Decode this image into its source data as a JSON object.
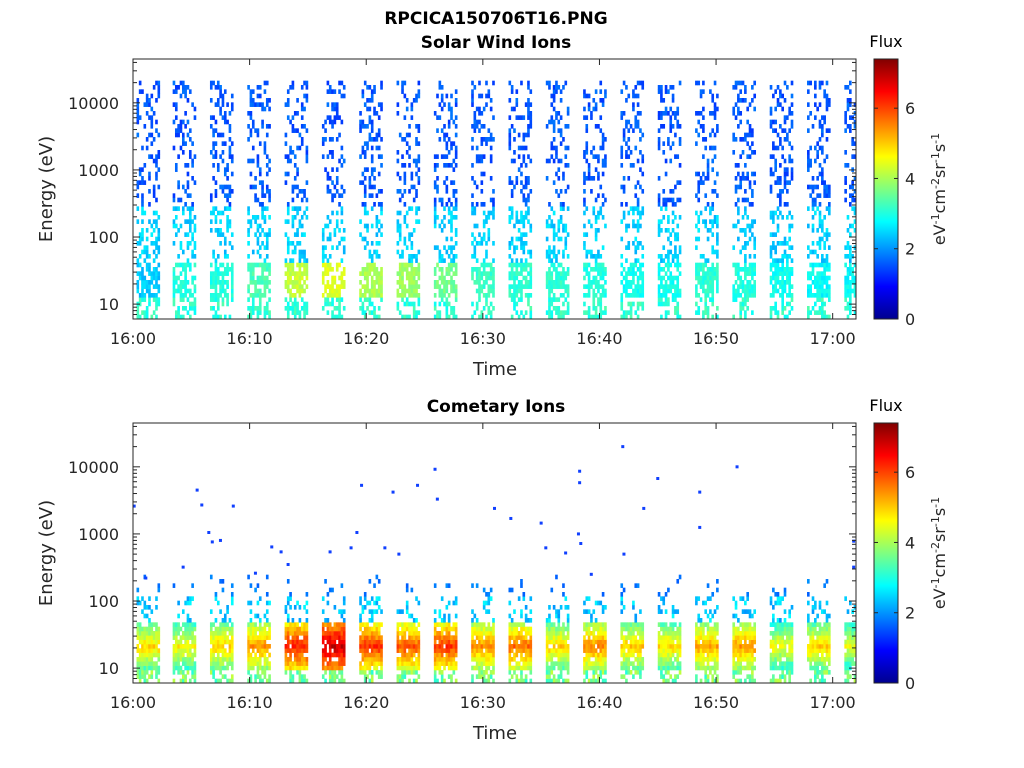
{
  "figure": {
    "title": "RPCICA150706T16.PNG"
  },
  "chart_data": [
    {
      "type": "heatmap",
      "title": "Solar Wind Ions",
      "xlabel": "Time",
      "ylabel": "Energy (eV)",
      "x_ticks": [
        "16:00",
        "16:10",
        "16:20",
        "16:30",
        "16:40",
        "16:50",
        "17:00"
      ],
      "x_range": [
        "16:00",
        "17:02"
      ],
      "y_scale": "log",
      "y_ticks": [
        "10",
        "100",
        "1000",
        "10000"
      ],
      "y_range": [
        6,
        45000
      ],
      "colorbar": {
        "title": "Flux",
        "label": "eV-1cm-2sr-1s-1",
        "ticks": [
          "0",
          "2",
          "4",
          "6"
        ],
        "range": [
          0,
          7.4
        ],
        "colormap": "jet"
      },
      "sweep_period_minutes": 3.2,
      "sweep_start_minutes": [
        0.3,
        3.4,
        6.6,
        9.8,
        13.0,
        16.2,
        19.4,
        22.6,
        25.8,
        29.0,
        32.2,
        35.4,
        38.6,
        41.8,
        45.0,
        48.2,
        51.4,
        54.6,
        57.8,
        61.0
      ],
      "peak_flux_per_sweep": [
        2.6,
        3.2,
        3.2,
        3.5,
        4.4,
        4.6,
        4.2,
        4.1,
        3.8,
        3.4,
        3.3,
        3.3,
        3.2,
        3.1,
        3.1,
        3.3,
        3.2,
        3.1,
        3.0,
        3.0
      ],
      "energy_band_eV": {
        "core": [
          12,
          40
        ],
        "extent": [
          6,
          20000
        ]
      }
    },
    {
      "type": "heatmap",
      "title": "Cometary Ions",
      "xlabel": "Time",
      "ylabel": "Energy (eV)",
      "x_ticks": [
        "16:00",
        "16:10",
        "16:20",
        "16:30",
        "16:40",
        "16:50",
        "17:00"
      ],
      "x_range": [
        "16:00",
        "17:02"
      ],
      "y_scale": "log",
      "y_ticks": [
        "10",
        "100",
        "1000",
        "10000"
      ],
      "y_range": [
        6,
        45000
      ],
      "colorbar": {
        "title": "Flux",
        "label": "eV-1cm-2sr-1s-1",
        "ticks": [
          "0",
          "2",
          "4",
          "6"
        ],
        "range": [
          0,
          7.4
        ],
        "colormap": "jet"
      },
      "sweep_period_minutes": 3.2,
      "sweep_start_minutes": [
        0.3,
        3.4,
        6.6,
        9.8,
        13.0,
        16.2,
        19.4,
        22.6,
        25.8,
        29.0,
        32.2,
        35.4,
        38.6,
        41.8,
        45.0,
        48.2,
        51.4,
        54.6,
        57.8,
        61.0
      ],
      "peak_flux_per_sweep": [
        5.2,
        5.0,
        5.3,
        5.7,
        6.6,
        7.2,
        6.4,
        6.2,
        6.4,
        5.8,
        6.0,
        5.3,
        5.8,
        5.3,
        5.2,
        5.6,
        5.7,
        4.9,
        5.3,
        4.8
      ],
      "energy_band_eV": {
        "core": [
          10,
          45
        ],
        "extent": [
          6,
          250
        ]
      },
      "isolated_counts": [
        {
          "t": 0.1,
          "e": 2600
        },
        {
          "t": 1.1,
          "e": 220
        },
        {
          "t": 4.3,
          "e": 320
        },
        {
          "t": 5.5,
          "e": 4500
        },
        {
          "t": 5.9,
          "e": 2700
        },
        {
          "t": 6.5,
          "e": 1050
        },
        {
          "t": 6.8,
          "e": 760
        },
        {
          "t": 7.5,
          "e": 800
        },
        {
          "t": 8.6,
          "e": 2600
        },
        {
          "t": 10.5,
          "e": 260
        },
        {
          "t": 11.9,
          "e": 640
        },
        {
          "t": 12.7,
          "e": 540
        },
        {
          "t": 13.3,
          "e": 350
        },
        {
          "t": 16.9,
          "e": 540
        },
        {
          "t": 18.7,
          "e": 620
        },
        {
          "t": 19.2,
          "e": 1050
        },
        {
          "t": 19.6,
          "e": 5300
        },
        {
          "t": 21.6,
          "e": 620
        },
        {
          "t": 22.3,
          "e": 4200
        },
        {
          "t": 22.8,
          "e": 500
        },
        {
          "t": 24.4,
          "e": 5300
        },
        {
          "t": 25.9,
          "e": 9200
        },
        {
          "t": 26.1,
          "e": 3300
        },
        {
          "t": 31.0,
          "e": 2400
        },
        {
          "t": 32.4,
          "e": 1700
        },
        {
          "t": 35.0,
          "e": 1450
        },
        {
          "t": 35.4,
          "e": 620
        },
        {
          "t": 37.1,
          "e": 520
        },
        {
          "t": 38.3,
          "e": 8600
        },
        {
          "t": 38.3,
          "e": 5800
        },
        {
          "t": 38.2,
          "e": 1000
        },
        {
          "t": 38.4,
          "e": 720
        },
        {
          "t": 39.3,
          "e": 250
        },
        {
          "t": 42.0,
          "e": 20000
        },
        {
          "t": 42.1,
          "e": 500
        },
        {
          "t": 43.8,
          "e": 2400
        },
        {
          "t": 45.0,
          "e": 6700
        },
        {
          "t": 48.6,
          "e": 4200
        },
        {
          "t": 48.6,
          "e": 1250
        },
        {
          "t": 51.8,
          "e": 10000
        },
        {
          "t": 61.8,
          "e": 780
        },
        {
          "t": 61.8,
          "e": 320
        }
      ]
    }
  ]
}
